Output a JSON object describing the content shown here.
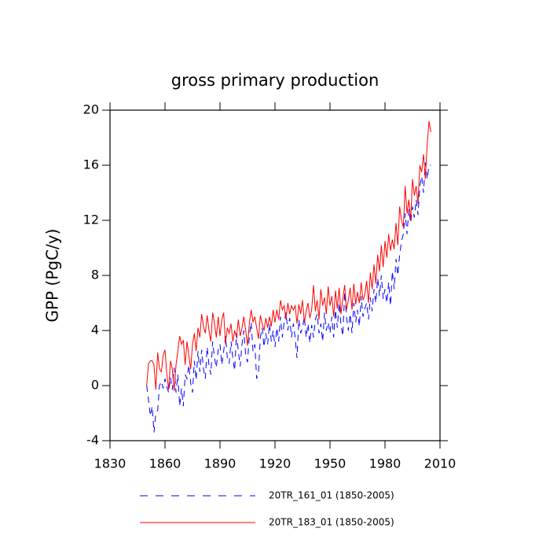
{
  "chart_data": {
    "type": "line",
    "title": "gross primary production",
    "y_label": "GPP  (PgC/y)",
    "x": [
      1850,
      1851,
      1852,
      1853,
      1854,
      1855,
      1856,
      1857,
      1858,
      1859,
      1860,
      1861,
      1862,
      1863,
      1864,
      1865,
      1866,
      1867,
      1868,
      1869,
      1870,
      1871,
      1872,
      1873,
      1874,
      1875,
      1876,
      1877,
      1878,
      1879,
      1880,
      1881,
      1882,
      1883,
      1884,
      1885,
      1886,
      1887,
      1888,
      1889,
      1890,
      1891,
      1892,
      1893,
      1894,
      1895,
      1896,
      1897,
      1898,
      1899,
      1900,
      1901,
      1902,
      1903,
      1904,
      1905,
      1906,
      1907,
      1908,
      1909,
      1910,
      1911,
      1912,
      1913,
      1914,
      1915,
      1916,
      1917,
      1918,
      1919,
      1920,
      1921,
      1922,
      1923,
      1924,
      1925,
      1926,
      1927,
      1928,
      1929,
      1930,
      1931,
      1932,
      1933,
      1934,
      1935,
      1936,
      1937,
      1938,
      1939,
      1940,
      1941,
      1942,
      1943,
      1944,
      1945,
      1946,
      1947,
      1948,
      1949,
      1950,
      1951,
      1952,
      1953,
      1954,
      1955,
      1956,
      1957,
      1958,
      1959,
      1960,
      1961,
      1962,
      1963,
      1964,
      1965,
      1966,
      1967,
      1968,
      1969,
      1970,
      1971,
      1972,
      1973,
      1974,
      1975,
      1976,
      1977,
      1978,
      1979,
      1980,
      1981,
      1982,
      1983,
      1984,
      1985,
      1986,
      1987,
      1988,
      1989,
      1990,
      1991,
      1992,
      1993,
      1994,
      1995,
      1996,
      1997,
      1998,
      1999,
      2000,
      2001,
      2002,
      2003,
      2004,
      2005
    ],
    "series": [
      {
        "name": "20TR_161_01 (1850-2005)",
        "color": "#0000ff",
        "dashed": true,
        "values": [
          0.0,
          -1.0,
          -2.2,
          -1.5,
          -3.4,
          -2.0,
          -1.8,
          0.0,
          0.3,
          -0.2,
          0.5,
          -0.1,
          -0.5,
          0.6,
          -0.3,
          1.3,
          -0.5,
          0.8,
          -1.5,
          -0.2,
          -1.5,
          0.8,
          0.5,
          1.5,
          0.2,
          -0.5,
          1.8,
          0.4,
          2.5,
          1.0,
          2.6,
          1.2,
          0.5,
          2.8,
          1.5,
          0.8,
          3.2,
          2.0,
          1.3,
          2.6,
          3.0,
          1.5,
          2.5,
          3.6,
          2.0,
          1.6,
          3.2,
          2.0,
          1.1,
          3.8,
          2.5,
          1.4,
          3.0,
          4.0,
          2.2,
          1.7,
          3.6,
          4.6,
          2.5,
          3.0,
          0.5,
          1.0,
          3.5,
          4.2,
          2.8,
          3.8,
          3.0,
          4.5,
          3.2,
          4.0,
          2.8,
          4.2,
          3.2,
          5.0,
          3.5,
          4.6,
          5.3,
          4.0,
          4.9,
          3.5,
          4.5,
          3.5,
          2.0,
          4.8,
          3.8,
          4.2,
          5.0,
          3.5,
          4.5,
          3.1,
          4.4,
          3.5,
          4.8,
          5.2,
          3.8,
          4.5,
          3.2,
          5.3,
          4.0,
          4.6,
          3.8,
          5.0,
          3.5,
          5.5,
          4.2,
          6.0,
          4.4,
          3.6,
          6.8,
          5.0,
          4.0,
          5.2,
          3.8,
          6.0,
          4.6,
          5.5,
          4.3,
          6.5,
          5.0,
          5.6,
          6.0,
          4.8,
          6.4,
          5.4,
          7.0,
          6.0,
          7.8,
          6.5,
          8.0,
          6.3,
          7.0,
          6.0,
          7.5,
          5.8,
          8.3,
          7.0,
          9.2,
          8.0,
          9.5,
          10.5,
          11.0,
          12.5,
          11.0,
          12.8,
          11.8,
          13.0,
          12.2,
          13.5,
          12.4,
          14.5,
          15.2,
          14.0,
          16.2,
          15.0,
          16.0,
          16.0
        ]
      },
      {
        "name": "20TR_183_01 (1850-2005)",
        "color": "#ff0000",
        "dashed": false,
        "values": [
          0.0,
          1.6,
          1.8,
          1.8,
          1.5,
          -0.3,
          2.4,
          1.2,
          1.0,
          2.2,
          2.6,
          0.8,
          -0.3,
          1.8,
          1.2,
          -0.4,
          1.5,
          2.5,
          3.6,
          3.0,
          3.3,
          1.5,
          3.2,
          2.2,
          1.2,
          3.0,
          3.8,
          2.5,
          4.2,
          3.5,
          5.2,
          4.3,
          3.8,
          5.1,
          4.0,
          3.2,
          5.3,
          4.5,
          3.5,
          5.0,
          3.6,
          4.8,
          5.3,
          3.0,
          4.2,
          3.8,
          4.5,
          3.2,
          4.0,
          3.5,
          4.8,
          3.6,
          4.2,
          5.0,
          4.0,
          2.9,
          4.5,
          5.5,
          4.6,
          5.0,
          4.2,
          3.4,
          5.1,
          4.5,
          4.0,
          4.9,
          4.2,
          5.0,
          4.3,
          5.5,
          4.6,
          5.5,
          4.8,
          6.2,
          5.5,
          5.8,
          4.8,
          6.0,
          5.2,
          5.8,
          5.5,
          5.8,
          4.5,
          5.9,
          5.2,
          6.2,
          4.6,
          5.4,
          6.0,
          4.9,
          5.5,
          7.3,
          5.4,
          6.2,
          4.8,
          7.0,
          5.8,
          6.4,
          5.2,
          7.2,
          5.8,
          6.5,
          5.0,
          6.9,
          5.6,
          7.1,
          5.2,
          6.3,
          7.3,
          5.5,
          6.2,
          7.1,
          5.5,
          7.4,
          5.9,
          6.8,
          6.0,
          7.5,
          6.2,
          6.6,
          7.6,
          6.0,
          8.2,
          7.0,
          8.8,
          7.4,
          9.5,
          8.3,
          10.2,
          8.6,
          10.5,
          9.3,
          11.0,
          9.8,
          10.6,
          9.9,
          11.8,
          10.2,
          13.0,
          12.0,
          11.5,
          14.5,
          12.5,
          13.5,
          12.0,
          15.0,
          13.8,
          14.5,
          13.2,
          16.0,
          15.5,
          16.8,
          15.0,
          17.5,
          19.2,
          18.4
        ]
      }
    ],
    "xlim": [
      1830,
      2010
    ],
    "xticks": [
      1830,
      1860,
      1890,
      1920,
      1950,
      1980,
      2010
    ],
    "ylim": [
      -4,
      20
    ],
    "yticks": [
      -4,
      0,
      4,
      8,
      12,
      16,
      20
    ]
  }
}
